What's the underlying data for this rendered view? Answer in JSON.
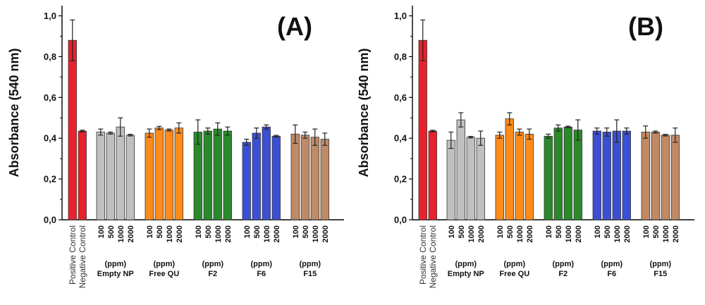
{
  "chart_data": [
    {
      "type": "bar",
      "panel_label": "(A)",
      "ylabel": "Absorbance (540 nm)",
      "ylim": [
        0,
        1.05
      ],
      "yticks": [
        "0,0",
        "0,2",
        "0,4",
        "0,6",
        "0,8",
        "1,0"
      ],
      "grid": false,
      "controls": [
        {
          "label": "Positive Control",
          "value": 0.88,
          "error": 0.1,
          "color": "#e8212b"
        },
        {
          "label": "Negative Control",
          "value": 0.435,
          "error": 0.004,
          "color": "#e8212b"
        }
      ],
      "groups": [
        {
          "name": "Empty NP",
          "unit": "(ppm)",
          "color": "#c0c0c0",
          "categories": [
            "100",
            "500",
            "1000",
            "2000"
          ],
          "values": [
            0.43,
            0.425,
            0.455,
            0.415
          ],
          "errors": [
            0.015,
            0.005,
            0.045,
            0.004
          ]
        },
        {
          "name": "Free QU",
          "unit": "(ppm)",
          "color": "#ff8c1a",
          "categories": [
            "100",
            "500",
            "1000",
            "2000"
          ],
          "values": [
            0.425,
            0.45,
            0.44,
            0.45
          ],
          "errors": [
            0.02,
            0.008,
            0.005,
            0.025
          ]
        },
        {
          "name": "F2",
          "unit": "(ppm)",
          "color": "#2a8a2a",
          "categories": [
            "100",
            "500",
            "1000",
            "2000"
          ],
          "values": [
            0.43,
            0.435,
            0.445,
            0.435
          ],
          "errors": [
            0.06,
            0.015,
            0.03,
            0.02
          ]
        },
        {
          "name": "F6",
          "unit": "(ppm)",
          "color": "#3b4fd6",
          "categories": [
            "100",
            "500",
            "1000",
            "2000"
          ],
          "values": [
            0.38,
            0.425,
            0.455,
            0.41
          ],
          "errors": [
            0.015,
            0.025,
            0.01,
            0.004
          ]
        },
        {
          "name": "F15",
          "unit": "(ppm)",
          "color": "#bf8a65",
          "categories": [
            "100",
            "500",
            "1000",
            "2000"
          ],
          "values": [
            0.42,
            0.415,
            0.405,
            0.395
          ],
          "errors": [
            0.045,
            0.015,
            0.04,
            0.03
          ]
        }
      ]
    },
    {
      "type": "bar",
      "panel_label": "(B)",
      "ylabel": "Absorbance (540 nm)",
      "ylim": [
        0,
        1.05
      ],
      "yticks": [
        "0,0",
        "0,2",
        "0,4",
        "0,6",
        "0,8",
        "1,0"
      ],
      "grid": false,
      "controls": [
        {
          "label": "Positive Control",
          "value": 0.88,
          "error": 0.1,
          "color": "#e8212b"
        },
        {
          "label": "Negative Control",
          "value": 0.435,
          "error": 0.004,
          "color": "#e8212b"
        }
      ],
      "groups": [
        {
          "name": "Empty NP",
          "unit": "(ppm)",
          "color": "#c0c0c0",
          "categories": [
            "100",
            "500",
            "1000",
            "2000"
          ],
          "values": [
            0.39,
            0.49,
            0.405,
            0.4
          ],
          "errors": [
            0.04,
            0.035,
            0.004,
            0.035
          ]
        },
        {
          "name": "Free QU",
          "unit": "(ppm)",
          "color": "#ff8c1a",
          "categories": [
            "100",
            "500",
            "1000",
            "2000"
          ],
          "values": [
            0.415,
            0.495,
            0.43,
            0.42
          ],
          "errors": [
            0.015,
            0.03,
            0.015,
            0.025
          ]
        },
        {
          "name": "F2",
          "unit": "(ppm)",
          "color": "#2a8a2a",
          "categories": [
            "100",
            "500",
            "1000",
            "2000"
          ],
          "values": [
            0.41,
            0.45,
            0.455,
            0.44
          ],
          "errors": [
            0.01,
            0.015,
            0.004,
            0.05
          ]
        },
        {
          "name": "F6",
          "unit": "(ppm)",
          "color": "#3b4fd6",
          "categories": [
            "100",
            "500",
            "1000",
            "2000"
          ],
          "values": [
            0.435,
            0.43,
            0.435,
            0.435
          ],
          "errors": [
            0.015,
            0.02,
            0.055,
            0.015
          ]
        },
        {
          "name": "F15",
          "unit": "(ppm)",
          "color": "#bf8a65",
          "categories": [
            "100",
            "500",
            "1000",
            "2000"
          ],
          "values": [
            0.43,
            0.43,
            0.415,
            0.415
          ],
          "errors": [
            0.03,
            0.005,
            0.004,
            0.035
          ]
        }
      ]
    }
  ]
}
